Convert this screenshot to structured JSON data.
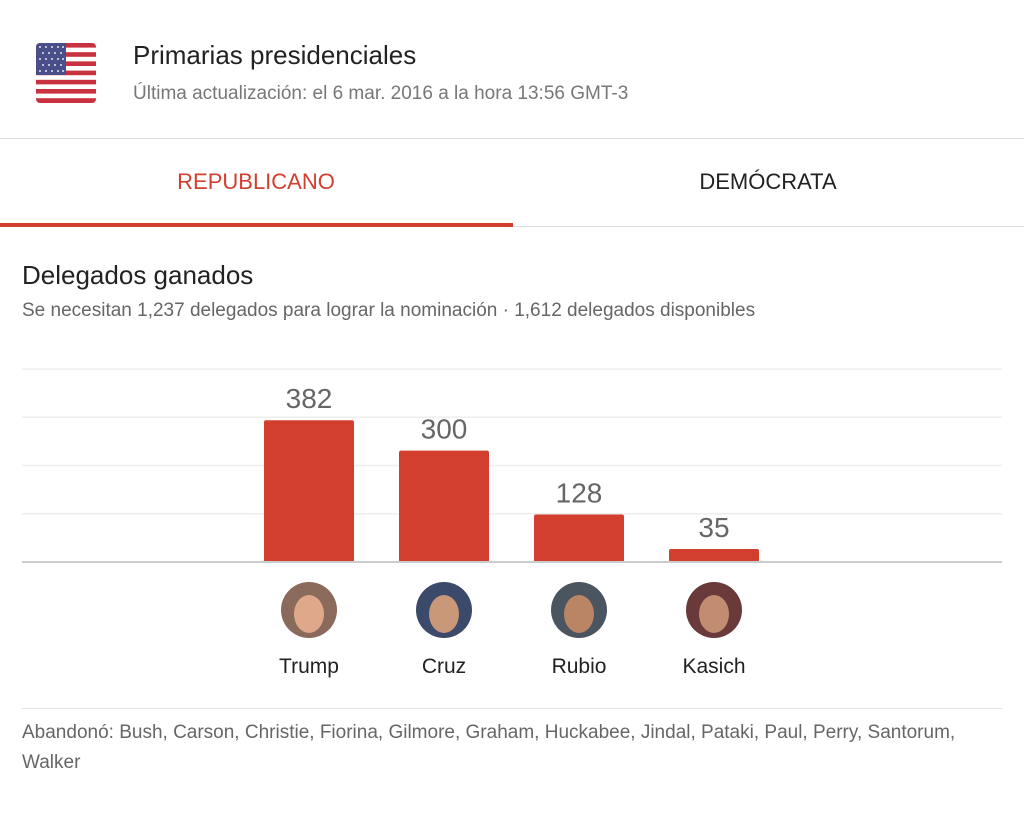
{
  "header": {
    "title": "Primarias presidenciales",
    "updated": "Última actualización: el 6 mar. 2016 a la hora 13:56 GMT-3",
    "flag_icon": "us-flag-icon"
  },
  "tabs": [
    {
      "label": "REPUBLICANO",
      "active": true
    },
    {
      "label": "DEMÓCRATA",
      "active": false
    }
  ],
  "section": {
    "title": "Delegados ganados",
    "subtitle": "Se necesitan 1,237 delegados para lograr la nominación · 1,612 delegados disponibles"
  },
  "colors": {
    "accent": "#d33f2f",
    "bar": "#d33f2f"
  },
  "chart_data": {
    "type": "bar",
    "title": "Delegados ganados",
    "categories": [
      "Trump",
      "Cruz",
      "Rubio",
      "Kasich"
    ],
    "values": [
      382,
      300,
      128,
      35
    ],
    "ylim": [
      0,
      520
    ],
    "grid": true,
    "xlabel": "",
    "ylabel": ""
  },
  "dropped": "Abandonó: Bush, Carson, Christie, Fiorina, Gilmore, Graham, Huckabee, Jindal, Pataki, Paul, Perry, Santorum, Walker"
}
